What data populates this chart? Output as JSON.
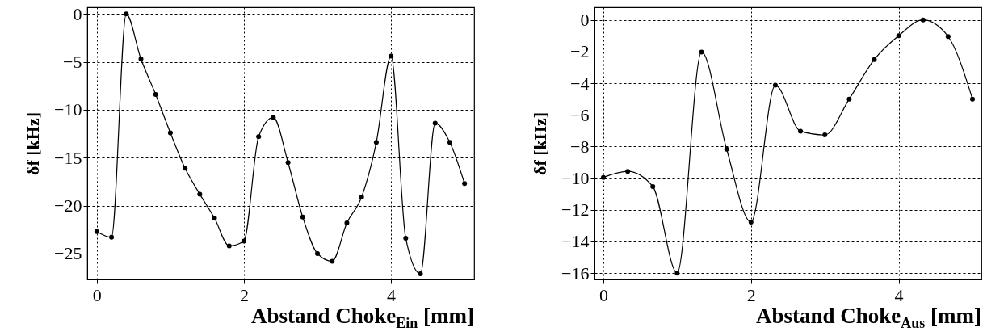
{
  "chart_data": [
    {
      "type": "line",
      "xlabel": "Abstand Choke$_{Ein}$ [mm]",
      "ylabel": "δf [kHz]",
      "x": [
        0,
        0.2,
        0.4,
        0.6,
        0.8,
        1.0,
        1.2,
        1.4,
        1.6,
        1.8,
        2.0,
        2.2,
        2.4,
        2.6,
        2.8,
        3.0,
        3.2,
        3.4,
        3.6,
        3.8,
        4.0,
        4.2,
        4.4,
        4.6,
        4.8,
        5.0
      ],
      "series": [
        {
          "color": "#000000",
          "values": [
            -22.7,
            -23.3,
            0.0,
            -4.7,
            -8.4,
            -12.4,
            -16.1,
            -18.8,
            -21.3,
            -24.2,
            -23.7,
            -12.8,
            -10.8,
            -15.5,
            -21.2,
            -25.0,
            -25.8,
            -21.8,
            -19.1,
            -13.4,
            -4.4,
            -23.4,
            -27.1,
            -11.4,
            -13.4,
            -17.7
          ]
        }
      ],
      "xlim": [
        -0.13,
        5.13
      ],
      "ylim": [
        -27.7,
        0.7
      ],
      "xticks": [
        0,
        2,
        4
      ],
      "yticks": [
        -25,
        -20,
        -15,
        -10,
        -5,
        0
      ],
      "grid": true,
      "marker": "circle"
    },
    {
      "type": "line",
      "xlabel": "Abstand Choke$_{Aus}$ [mm]",
      "ylabel": "δf [kHz]",
      "x": [
        0,
        0.33,
        0.67,
        1.0,
        1.33,
        1.67,
        2.0,
        2.33,
        2.67,
        3.0,
        3.33,
        3.67,
        4.0,
        4.33,
        4.67,
        5.0
      ],
      "series": [
        {
          "color": "#000000",
          "values": [
            -9.95,
            -9.57,
            -10.53,
            -16.0,
            -2.03,
            -8.17,
            -12.77,
            -4.13,
            -7.03,
            -7.27,
            -5.0,
            -2.5,
            -1.0,
            0.0,
            -1.05,
            -5.0
          ]
        }
      ],
      "xlim": [
        -0.12,
        5.12
      ],
      "ylim": [
        -16.4,
        0.8
      ],
      "xticks": [
        0,
        2,
        4
      ],
      "yticks": [
        -16,
        -14,
        -12,
        -10,
        -8,
        -6,
        -4,
        -2,
        0
      ],
      "grid": true,
      "marker": "circle"
    }
  ]
}
